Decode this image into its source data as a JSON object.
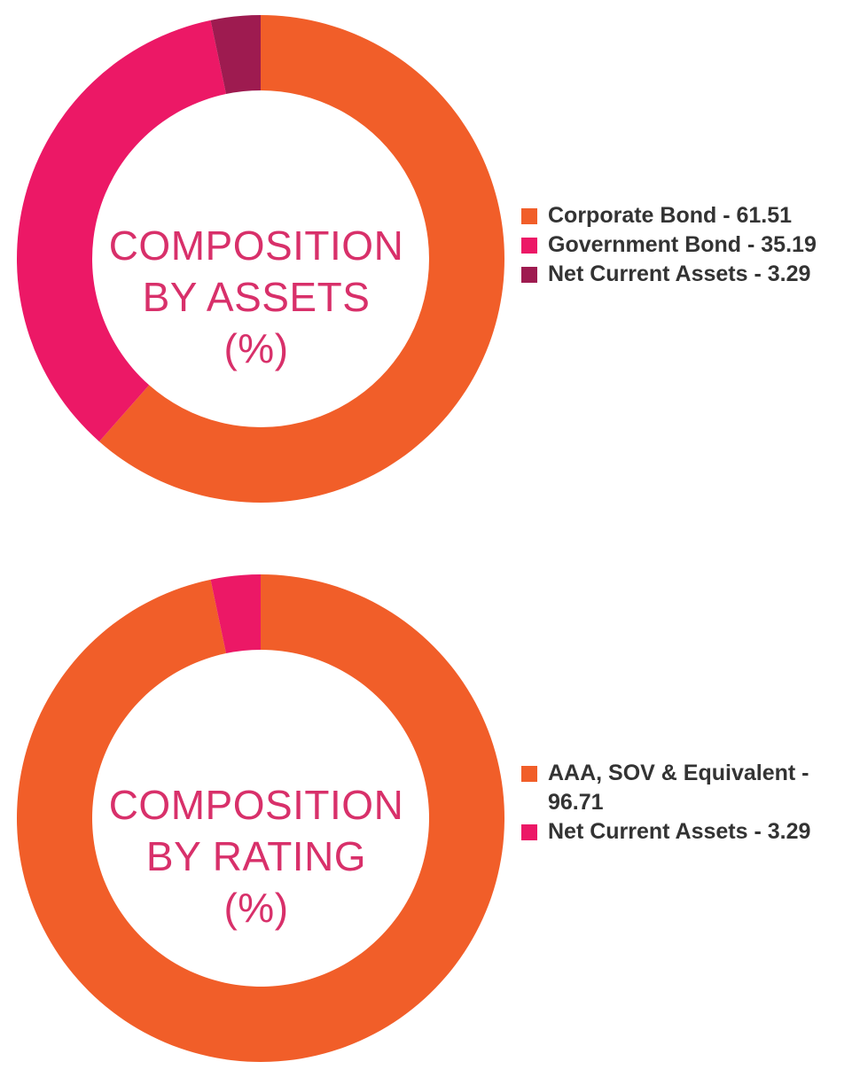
{
  "chart_data": [
    {
      "type": "pie",
      "title_lines": [
        "COMPOSITION",
        "BY ASSETS",
        "(%)"
      ],
      "categories": [
        "Corporate Bond",
        "Government Bond",
        "Net Current Assets"
      ],
      "values": [
        61.51,
        35.19,
        3.29
      ],
      "colors": [
        "#f15e29",
        "#ec1866",
        "#9e1b50"
      ],
      "legend_labels": [
        "Corporate Bond - 61.51",
        "Government Bond - 35.19",
        "Net Current Assets - 3.29"
      ],
      "legend_position": "right"
    },
    {
      "type": "pie",
      "title_lines": [
        "COMPOSITION",
        "BY RATING",
        "(%)"
      ],
      "categories": [
        "AAA, SOV & Equivalent",
        "Net Current Assets"
      ],
      "values": [
        96.71,
        3.29
      ],
      "colors": [
        "#f15e29",
        "#ec1866"
      ],
      "legend_labels": [
        "AAA, SOV & Equivalent - 96.71",
        "Net Current Assets - 3.29"
      ],
      "legend_position": "right"
    }
  ]
}
